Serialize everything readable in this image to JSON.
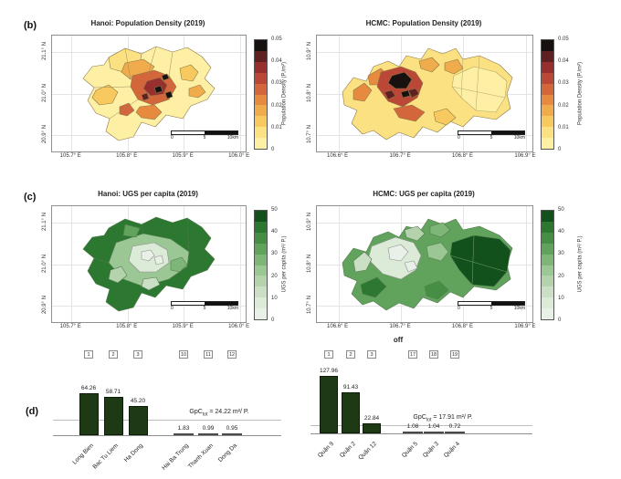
{
  "panel_labels": {
    "b": "(b)",
    "c": "(c)",
    "d": "(d)"
  },
  "colors": {
    "pd_colormap": [
      "#fdf0a4",
      "#fbe182",
      "#f7c95f",
      "#f0ab4c",
      "#e68a40",
      "#d3663a",
      "#bb4736",
      "#962f2e",
      "#5e2021",
      "#171210"
    ],
    "ugs_colormap": [
      "#e9f0e7",
      "#dcead8",
      "#cbdfc5",
      "#b4d3ad",
      "#9ac793",
      "#7eb677",
      "#61a35c",
      "#458e43",
      "#2c7830",
      "#12511c"
    ],
    "bar_fill": "#1d3a14",
    "small_bar_fill": "#4a4a4a"
  },
  "maps": [
    {
      "title": "Hanoi: Population Density (2019)",
      "xticks": [
        "105.7° E",
        "105.8° E",
        "105.9° E",
        "106.0° E"
      ],
      "yticks": [
        "21.1° N",
        "21.0° N",
        "20.9° N"
      ],
      "colorbar": {
        "ticks": [
          "0.05",
          "0.04",
          "0.03",
          "0.02",
          "0.01",
          "0"
        ],
        "label": "Population Density (P./m²)",
        "palette": "pd"
      },
      "scalebar": [
        "0",
        "5",
        "10km"
      ]
    },
    {
      "title": "HCMC: Population Density (2019)",
      "xticks": [
        "106.6° E",
        "106.7° E",
        "106.8° E",
        "106.9° E"
      ],
      "yticks": [
        "10.9° N",
        "10.8° N",
        "10.7° N"
      ],
      "colorbar": {
        "ticks": [
          "0.05",
          "0.04",
          "0.03",
          "0.02",
          "0.01",
          "0"
        ],
        "label": "Population Density (P./m²)",
        "palette": "pd"
      },
      "scalebar": [
        "0",
        "5",
        "10km"
      ]
    },
    {
      "title": "Hanoi: UGS per capita (2019)",
      "xticks": [
        "105.7° E",
        "105.8° E",
        "105.9° E",
        "106.0° E"
      ],
      "yticks": [
        "21.1° N",
        "21.0° N",
        "20.9° N"
      ],
      "colorbar": {
        "ticks": [
          "50",
          "40",
          "30",
          "20",
          "10",
          "0"
        ],
        "label": "UGS per capita (m²/ P.)",
        "palette": "ugs"
      },
      "scalebar": [
        "0",
        "5",
        "10km"
      ]
    },
    {
      "title": "HCMC: UGS per capita (2019)",
      "xticks": [
        "106.6° E",
        "106.7° E",
        "106.8° E",
        "106.9° E"
      ],
      "yticks": [
        "10.9° N",
        "10.8° N",
        "10.7° N"
      ],
      "colorbar": {
        "ticks": [
          "50",
          "40",
          "30",
          "20",
          "10",
          "0"
        ],
        "label": "UGS per capita (m²/ P.)",
        "palette": "ugs"
      },
      "scalebar": [
        "0",
        "5",
        "10km"
      ],
      "xlabel_below": "off"
    }
  ],
  "chart_data": [
    {
      "type": "bar",
      "city": "Hanoi",
      "categories": [
        "Long Bien",
        "Bac Tu Liem",
        "Ha Dong",
        "Hai Ba Trung",
        "Thanh Xuan",
        "Dong Da"
      ],
      "values": [
        64.26,
        58.71,
        45.2,
        1.83,
        0.99,
        0.95
      ],
      "value_labels": [
        "64.26",
        "58.71",
        "45.20",
        "1.83",
        "0.99",
        "0.95"
      ],
      "rank_labels": [
        "1",
        "2",
        "3",
        "10",
        "11",
        "12"
      ],
      "gpc_tot": 24.22,
      "annotation": {
        "prefix": "GpC",
        "sub": "tot",
        "rest": " = 24.22 m²/ P."
      },
      "ylim": [
        0,
        70
      ],
      "legend": "none",
      "grid": "off"
    },
    {
      "type": "bar",
      "city": "HCMC",
      "categories": [
        "Quận 9",
        "Quận 2",
        "Quận 12",
        "Quận 5",
        "Quận 3",
        "Quận 4"
      ],
      "values": [
        127.96,
        91.43,
        22.84,
        1.08,
        1.04,
        0.72
      ],
      "value_labels": [
        "127.96",
        "91.43",
        "22.84",
        "1.08",
        "1.04",
        "0.72"
      ],
      "rank_labels": [
        "1",
        "2",
        "3",
        "17",
        "18",
        "19"
      ],
      "gpc_tot": 17.91,
      "annotation": {
        "prefix": "GpC",
        "sub": "tot",
        "rest": " = 17.91 m²/ P."
      },
      "ylim": [
        0,
        140
      ],
      "legend": "none",
      "grid": "off"
    }
  ]
}
